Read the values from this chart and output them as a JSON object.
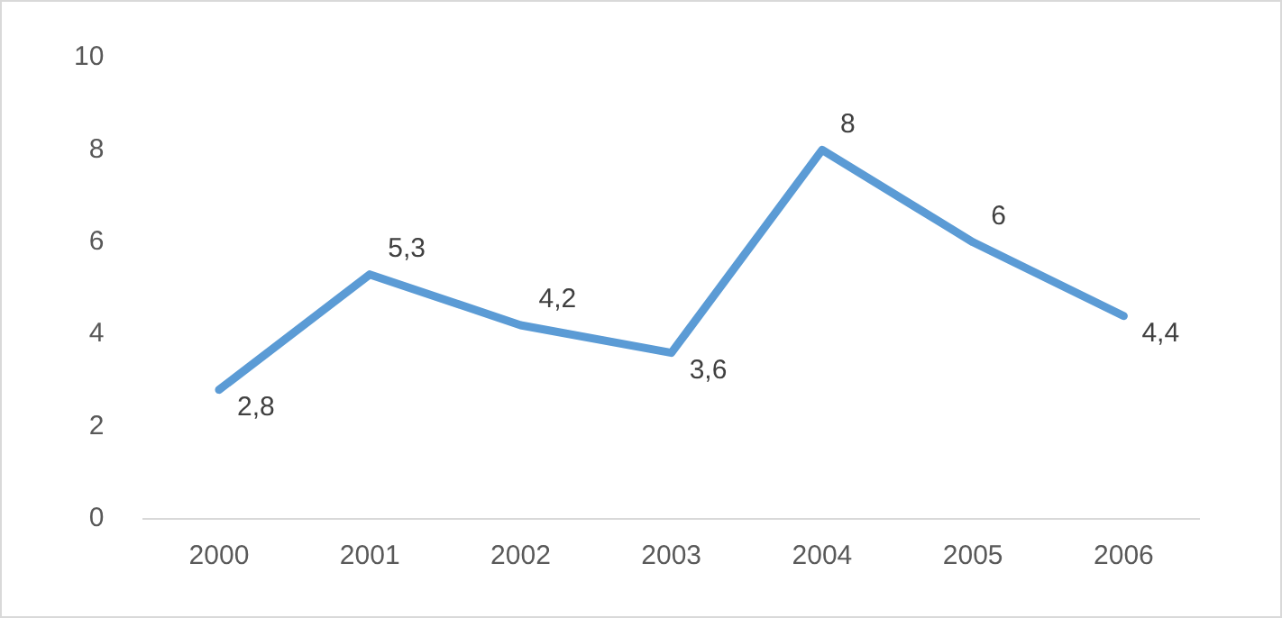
{
  "chart_data": {
    "type": "line",
    "categories": [
      "2000",
      "2001",
      "2002",
      "2003",
      "2004",
      "2005",
      "2006"
    ],
    "series": [
      {
        "color": "#5b9bd5",
        "values": [
          2.8,
          5.3,
          4.2,
          3.6,
          8,
          6,
          4.4
        ],
        "value_labels": [
          "2,8",
          "5,3",
          "4,2",
          "3,6",
          "8",
          "6",
          "4,4"
        ]
      }
    ],
    "ylim": [
      0,
      10
    ],
    "yticks": [
      0,
      2,
      4,
      6,
      8,
      10
    ],
    "grid": false,
    "legend": false,
    "marker": "none",
    "line_style": "solid"
  }
}
